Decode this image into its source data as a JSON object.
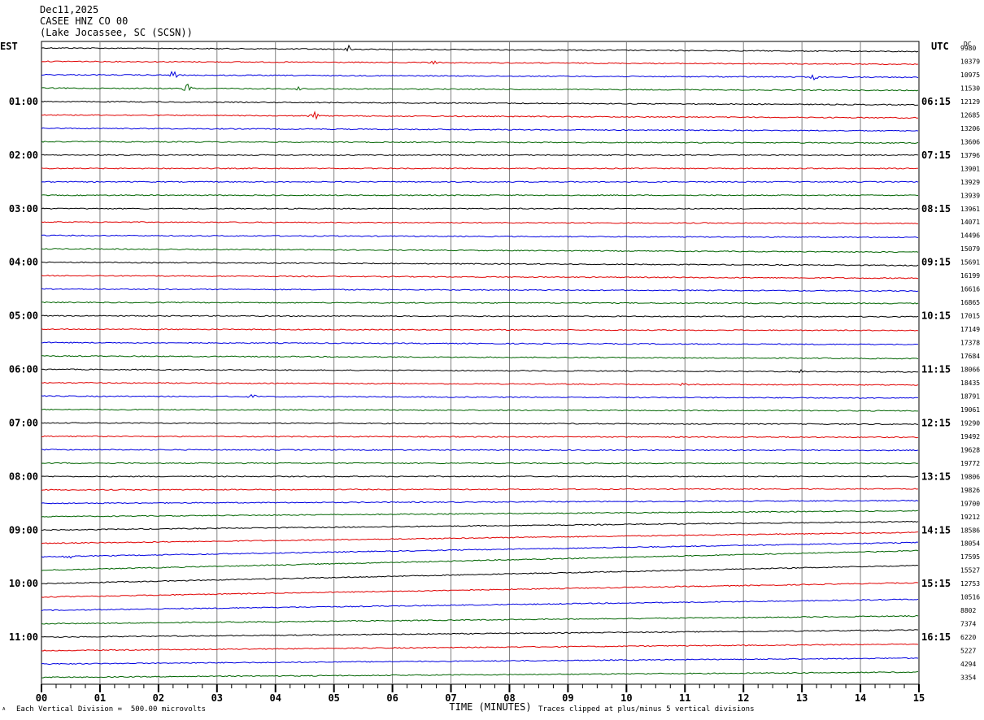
{
  "header": {
    "date": "Dec11,2025",
    "station": "CASEE HNZ CO 00",
    "location": "(Lake Jocassee, SC (SCSN))"
  },
  "tz_left": "EST",
  "tz_right": "UTC",
  "dc_label": "DC",
  "footer": {
    "scale_note": "Each Vertical Division =  500.00 microvolts",
    "clip_note": "Traces clipped at plus/minus 5 vertical divisions",
    "corner_mark": "ᴬ"
  },
  "colors": {
    "trace_cycle": [
      "#000000",
      "#e00000",
      "#0000e0",
      "#006400"
    ],
    "grid": "#808080"
  },
  "chart_data": {
    "type": "line",
    "subtype": "helicorder",
    "xlabel": "TIME (MINUTES)",
    "x_ticks": [
      "00",
      "01",
      "02",
      "03",
      "04",
      "05",
      "06",
      "07",
      "08",
      "09",
      "10",
      "11",
      "12",
      "13",
      "14",
      "15"
    ],
    "x_range": [
      0,
      15
    ],
    "left_time_labels": [
      "01:00",
      "02:00",
      "03:00",
      "04:00",
      "05:00",
      "06:00",
      "07:00",
      "08:00",
      "09:00",
      "10:00",
      "11:00"
    ],
    "right_time_labels": [
      "06:15",
      "07:15",
      "08:15",
      "09:15",
      "10:15",
      "11:15",
      "12:15",
      "13:15",
      "14:15",
      "15:15",
      "16:15"
    ],
    "dc_offsets": [
      "9980",
      "10379",
      "10975",
      "11530",
      "12129",
      "12685",
      "13206",
      "13606",
      "13796",
      "13901",
      "13929",
      "13939",
      "13961",
      "14071",
      "14496",
      "15079",
      "15691",
      "16199",
      "16616",
      "16865",
      "17015",
      "17149",
      "17378",
      "17684",
      "18066",
      "18435",
      "18791",
      "19061",
      "19290",
      "19492",
      "19628",
      "19772",
      "19806",
      "19826",
      "19700",
      "19212",
      "18586",
      "18054",
      "17595",
      "15527",
      "12753",
      "10516",
      "8802",
      "7374",
      "6220",
      "5227",
      "4294",
      "3354"
    ],
    "trace_drift_divisions": [
      0.55,
      0.45,
      0.4,
      0.35,
      0.5,
      0.45,
      0.4,
      0.2,
      0,
      0,
      0,
      0,
      0,
      0.2,
      0.3,
      0.5,
      0.5,
      0.4,
      0.3,
      0.15,
      0.15,
      0.2,
      0.3,
      0.4,
      0.4,
      0.35,
      0.3,
      0.2,
      0.2,
      0.15,
      0.1,
      0.05,
      0,
      -0.15,
      -0.4,
      -0.9,
      -1.3,
      -1.7,
      -2.2,
      -3.0,
      -2.8,
      -2.2,
      -1.7,
      -1.2,
      -1.1,
      -1.0,
      -0.9,
      -0.8
    ],
    "noise_level_divisions": 0.08,
    "events": [
      {
        "trace": 0,
        "minute": 5.25,
        "amp": 0.35
      },
      {
        "trace": 1,
        "minute": 6.7,
        "amp": 0.3
      },
      {
        "trace": 2,
        "minute": 2.25,
        "amp": 0.4
      },
      {
        "trace": 2,
        "minute": 13.2,
        "amp": 0.2
      },
      {
        "trace": 3,
        "minute": 2.5,
        "amp": 0.35
      },
      {
        "trace": 3,
        "minute": 4.4,
        "amp": 0.15
      },
      {
        "trace": 5,
        "minute": 4.65,
        "amp": 0.45
      },
      {
        "trace": 24,
        "minute": 13.0,
        "amp": 0.2
      },
      {
        "trace": 25,
        "minute": 11.0,
        "amp": 0.2
      },
      {
        "trace": 26,
        "minute": 3.6,
        "amp": 0.2
      },
      {
        "trace": 38,
        "minute": 0.45,
        "amp": 0.25
      }
    ]
  }
}
